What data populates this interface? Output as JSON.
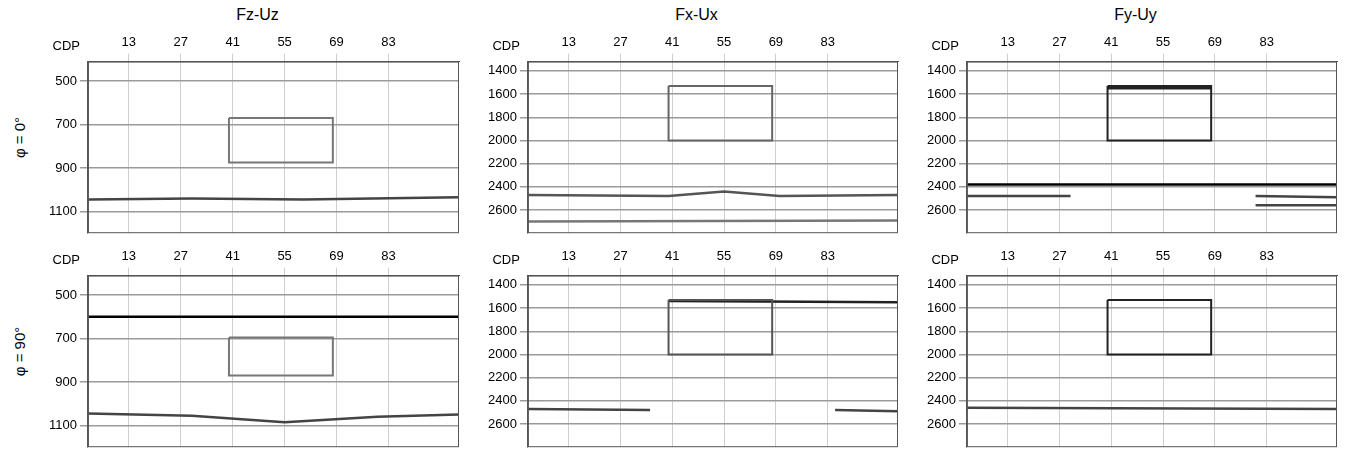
{
  "column_titles": [
    "Fz-Uz",
    "Fx-Ux",
    "Fy-Uy"
  ],
  "row_labels": [
    "φ = 0°",
    "φ = 90°"
  ],
  "chart_data": [
    {
      "type": "line",
      "x_label": "CDP",
      "xlim": [
        2,
        102
      ],
      "xticks": [
        13,
        27,
        41,
        55,
        69,
        83
      ],
      "ylim": [
        410,
        1200
      ],
      "yticks": [
        500,
        700,
        900,
        1100
      ],
      "grid": true,
      "tick_labels": true,
      "box": {
        "x": [
          40,
          68
        ],
        "y": [
          670,
          875
        ],
        "color": "#777777"
      },
      "series": [
        {
          "color": "#444444",
          "x": [
            2,
            30,
            60,
            102
          ],
          "values": [
            1045,
            1040,
            1045,
            1035
          ]
        }
      ]
    },
    {
      "type": "line",
      "x_label": "CDP",
      "xlim": [
        2,
        102
      ],
      "xticks": [
        13,
        27,
        41,
        55,
        69,
        83
      ],
      "ylim": [
        1320,
        2800
      ],
      "yticks": [
        1400,
        1600,
        1800,
        2000,
        2200,
        2400,
        2600
      ],
      "grid": true,
      "tick_labels": true,
      "box": {
        "x": [
          40,
          68
        ],
        "y": [
          1530,
          2000
        ],
        "color": "#666666"
      },
      "series": [
        {
          "color": "#555555",
          "x": [
            2,
            40,
            55,
            70,
            102
          ],
          "values": [
            2470,
            2480,
            2440,
            2480,
            2470
          ]
        },
        {
          "color": "#777777",
          "x": [
            2,
            102
          ],
          "values": [
            2700,
            2690
          ]
        }
      ]
    },
    {
      "type": "line",
      "x_label": "CDP",
      "xlim": [
        2,
        102
      ],
      "xticks": [
        13,
        27,
        41,
        55,
        69,
        83
      ],
      "ylim": [
        1320,
        2800
      ],
      "yticks": [
        1400,
        1600,
        1800,
        2000,
        2200,
        2400,
        2600
      ],
      "grid": true,
      "tick_labels": true,
      "box": {
        "x": [
          40,
          68
        ],
        "y": [
          1530,
          2000
        ],
        "color": "#222222"
      },
      "series": [
        {
          "color": "#222222",
          "x": [
            40,
            68
          ],
          "values": [
            1550,
            1550
          ]
        },
        {
          "color": "#000000",
          "x": [
            2,
            102
          ],
          "values": [
            2380,
            2380
          ]
        },
        {
          "color": "#444444",
          "x": [
            2,
            30
          ],
          "values": [
            2480,
            2480
          ]
        },
        {
          "color": "#444444",
          "x": [
            80,
            102
          ],
          "values": [
            2480,
            2490
          ]
        },
        {
          "color": "#444444",
          "x": [
            80,
            102
          ],
          "values": [
            2560,
            2560
          ]
        }
      ]
    },
    {
      "type": "line",
      "x_label": "CDP",
      "xlim": [
        2,
        102
      ],
      "xticks": [
        13,
        27,
        41,
        55,
        69,
        83
      ],
      "ylim": [
        410,
        1200
      ],
      "yticks": [
        500,
        700,
        900,
        1100
      ],
      "grid": true,
      "tick_labels": true,
      "box": {
        "x": [
          40,
          68
        ],
        "y": [
          695,
          870
        ],
        "color": "#777777"
      },
      "series": [
        {
          "color": "#000000",
          "x": [
            2,
            102
          ],
          "values": [
            600,
            600
          ]
        },
        {
          "color": "#444444",
          "x": [
            2,
            30,
            55,
            80,
            102
          ],
          "values": [
            1045,
            1055,
            1085,
            1060,
            1050
          ]
        }
      ]
    },
    {
      "type": "line",
      "x_label": "CDP",
      "xlim": [
        2,
        102
      ],
      "xticks": [
        13,
        27,
        41,
        55,
        69,
        83
      ],
      "ylim": [
        1320,
        2800
      ],
      "yticks": [
        1400,
        1600,
        1800,
        2000,
        2200,
        2400,
        2600
      ],
      "grid": true,
      "tick_labels": true,
      "box": {
        "x": [
          40,
          68
        ],
        "y": [
          1530,
          2000
        ],
        "color": "#555555"
      },
      "series": [
        {
          "color": "#222222",
          "x": [
            40,
            102
          ],
          "values": [
            1540,
            1550
          ]
        },
        {
          "color": "#444444",
          "x": [
            2,
            35
          ],
          "values": [
            2470,
            2480
          ]
        },
        {
          "color": "#444444",
          "x": [
            85,
            102
          ],
          "values": [
            2480,
            2490
          ]
        }
      ]
    },
    {
      "type": "line",
      "x_label": "CDP",
      "xlim": [
        2,
        102
      ],
      "xticks": [
        13,
        27,
        41,
        55,
        69,
        83
      ],
      "ylim": [
        1320,
        2800
      ],
      "yticks": [
        1400,
        1600,
        1800,
        2000,
        2200,
        2400,
        2600
      ],
      "grid": true,
      "tick_labels": true,
      "box": {
        "x": [
          40,
          68
        ],
        "y": [
          1530,
          2000
        ],
        "color": "#222222"
      },
      "series": [
        {
          "color": "#444444",
          "x": [
            2,
            102
          ],
          "values": [
            2460,
            2470
          ]
        }
      ]
    }
  ]
}
